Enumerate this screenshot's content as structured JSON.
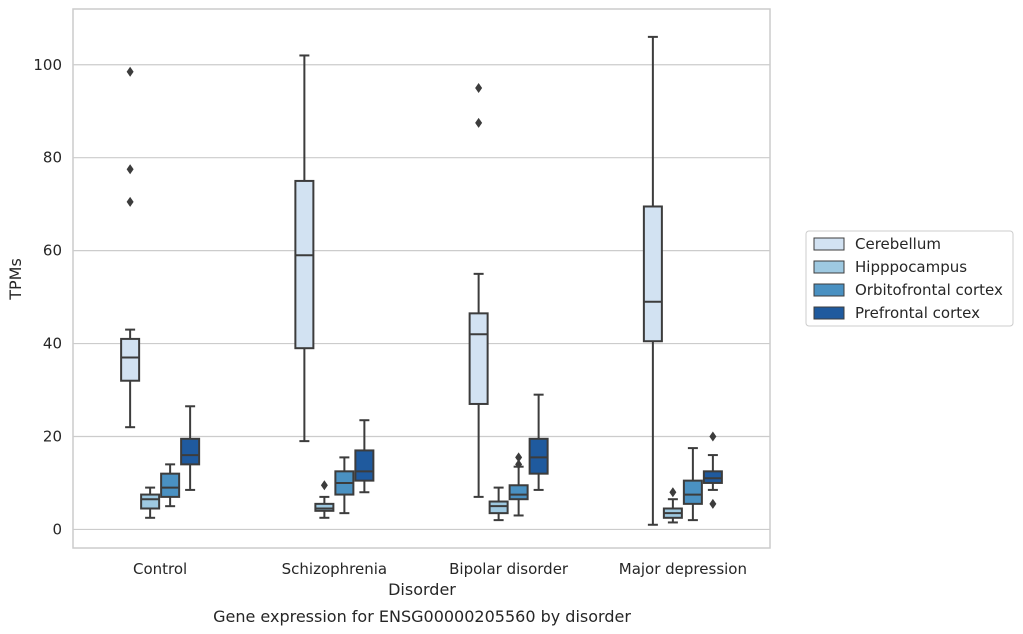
{
  "chart_data": {
    "type": "box",
    "title": "",
    "caption": "Gene expression for ENSG00000205560 by disorder",
    "xlabel": "Disorder",
    "ylabel": "TPMs",
    "ylim": [
      -4,
      112
    ],
    "yticks": [
      0,
      20,
      40,
      60,
      80,
      100
    ],
    "grid": "horizontal",
    "legend_position": "right",
    "categories": [
      "Control",
      "Schizophrenia",
      "Bipolar disorder",
      "Major depression"
    ],
    "series": [
      {
        "name": "Cerebellum",
        "color": "#d2e2f2",
        "boxes": [
          {
            "whisker_low": 22,
            "q1": 32,
            "median": 37,
            "q3": 41,
            "whisker_high": 43,
            "outliers": [
              70.5,
              77.5,
              98.5
            ]
          },
          {
            "whisker_low": 19,
            "q1": 39,
            "median": 59,
            "q3": 75,
            "whisker_high": 102,
            "outliers": []
          },
          {
            "whisker_low": 7,
            "q1": 27,
            "median": 42,
            "q3": 46.5,
            "whisker_high": 55,
            "outliers": [
              87.5,
              95
            ]
          },
          {
            "whisker_low": 1,
            "q1": 40.5,
            "median": 49,
            "q3": 69.5,
            "whisker_high": 106,
            "outliers": []
          }
        ]
      },
      {
        "name": "Hipppocampus",
        "color": "#9ec9e1",
        "boxes": [
          {
            "whisker_low": 2.5,
            "q1": 4.5,
            "median": 6.5,
            "q3": 7.5,
            "whisker_high": 9,
            "outliers": []
          },
          {
            "whisker_low": 2.5,
            "q1": 4,
            "median": 4.5,
            "q3": 5.5,
            "whisker_high": 7,
            "outliers": [
              9.5
            ]
          },
          {
            "whisker_low": 2,
            "q1": 3.5,
            "median": 5,
            "q3": 6,
            "whisker_high": 9,
            "outliers": []
          },
          {
            "whisker_low": 1.5,
            "q1": 2.5,
            "median": 3.5,
            "q3": 4.5,
            "whisker_high": 6.5,
            "outliers": [
              8
            ]
          }
        ]
      },
      {
        "name": "Orbitofrontal cortex",
        "color": "#4a91c2",
        "boxes": [
          {
            "whisker_low": 5,
            "q1": 7,
            "median": 9,
            "q3": 12,
            "whisker_high": 14,
            "outliers": []
          },
          {
            "whisker_low": 3.5,
            "q1": 7.5,
            "median": 10,
            "q3": 12.5,
            "whisker_high": 15.5,
            "outliers": []
          },
          {
            "whisker_low": 3,
            "q1": 6.5,
            "median": 7.5,
            "q3": 9.5,
            "whisker_high": 13.5,
            "outliers": [
              14,
              15.5
            ]
          },
          {
            "whisker_low": 2,
            "q1": 5.5,
            "median": 7.5,
            "q3": 10.5,
            "whisker_high": 17.5,
            "outliers": []
          }
        ]
      },
      {
        "name": "Prefrontal cortex",
        "color": "#1f5a9e",
        "boxes": [
          {
            "whisker_low": 8.5,
            "q1": 14,
            "median": 16,
            "q3": 19.5,
            "whisker_high": 26.5,
            "outliers": []
          },
          {
            "whisker_low": 8,
            "q1": 10.5,
            "median": 12.5,
            "q3": 17,
            "whisker_high": 23.5,
            "outliers": []
          },
          {
            "whisker_low": 8.5,
            "q1": 12,
            "median": 15.5,
            "q3": 19.5,
            "whisker_high": 29,
            "outliers": []
          },
          {
            "whisker_low": 8.5,
            "q1": 10,
            "median": 11,
            "q3": 12.5,
            "whisker_high": 16,
            "outliers": [
              5.5,
              20
            ]
          }
        ]
      }
    ]
  }
}
